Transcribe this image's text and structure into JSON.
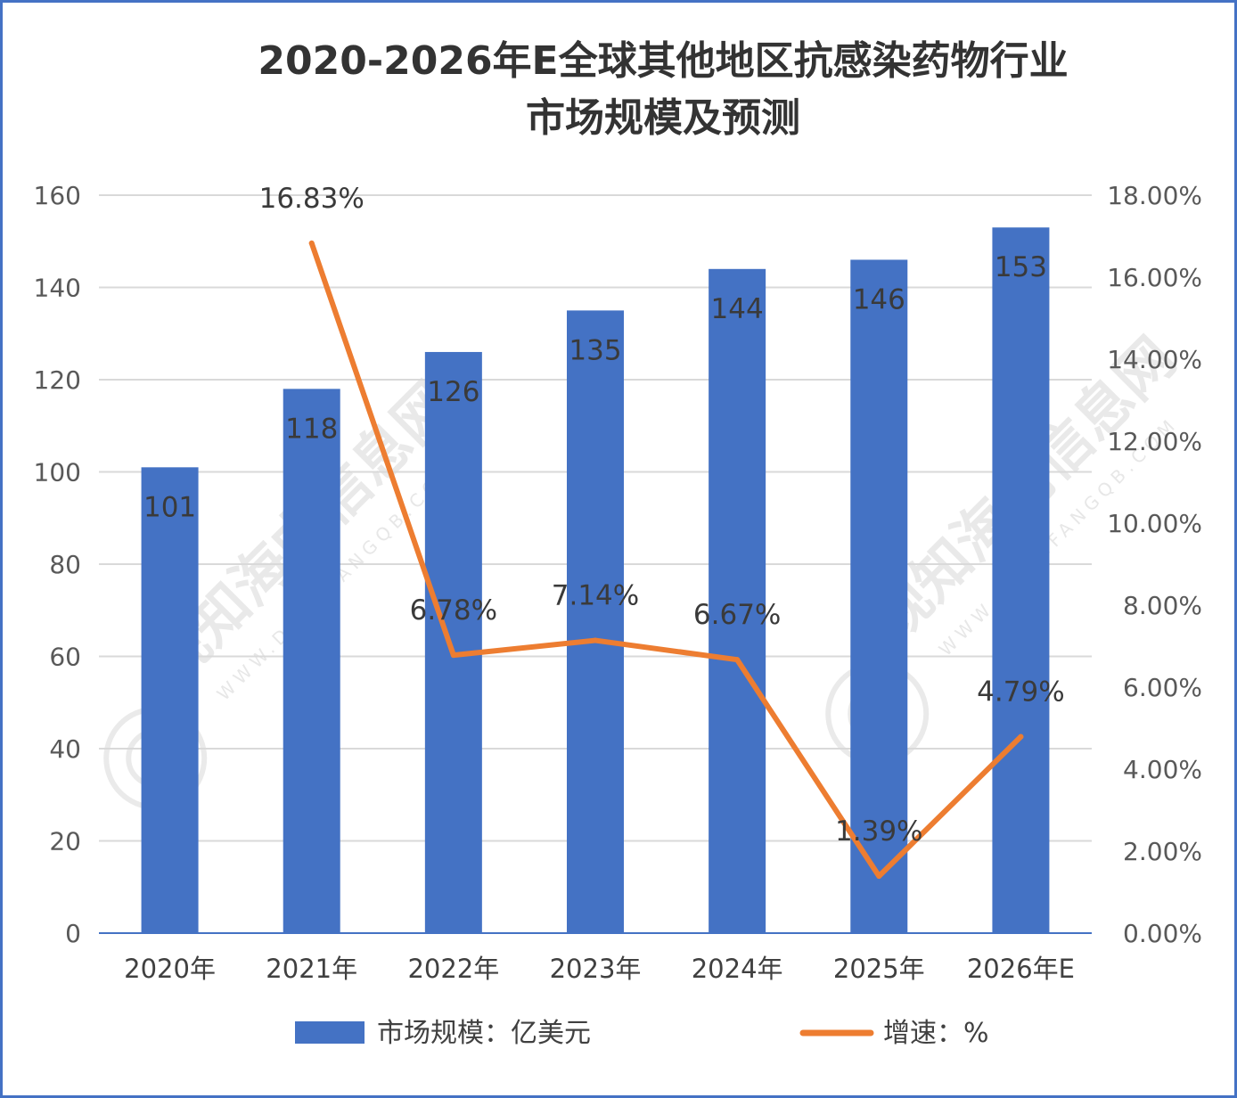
{
  "chart_data": {
    "type": "bar",
    "title_lines": [
      "2020-2026年E全球其他地区抗感染药物行业",
      "市场规模及预测"
    ],
    "categories": [
      "2020年",
      "2021年",
      "2022年",
      "2023年",
      "2024年",
      "2025年",
      "2026年E"
    ],
    "series": [
      {
        "name": "市场规模：亿美元",
        "type": "bar",
        "axis": "left",
        "color": "#4472c4",
        "values": [
          101,
          118,
          126,
          135,
          144,
          146,
          153
        ],
        "labels": [
          "101",
          "118",
          "126",
          "135",
          "144",
          "146",
          "153"
        ]
      },
      {
        "name": "增速：%",
        "type": "line",
        "axis": "right",
        "color": "#ed7d31",
        "values": [
          null,
          16.83,
          6.78,
          7.14,
          6.67,
          1.39,
          4.79
        ],
        "labels": [
          null,
          "16.83%",
          "6.78%",
          "7.14%",
          "6.67%",
          "1.39%",
          "4.79%"
        ]
      }
    ],
    "y_left": {
      "min": 0,
      "max": 160,
      "ticks": [
        "0",
        "20",
        "40",
        "60",
        "80",
        "100",
        "120",
        "140",
        "160"
      ]
    },
    "y_right": {
      "min": 0,
      "max": 18,
      "ticks": [
        "0.00%",
        "2.00%",
        "4.00%",
        "6.00%",
        "8.00%",
        "10.00%",
        "12.00%",
        "14.00%",
        "16.00%",
        "18.00%"
      ]
    },
    "grid": true,
    "legend_position": "bottom"
  },
  "watermark": {
    "text": "观知海内信息网",
    "sub": "WWW.DONGFANGQB.COM"
  },
  "colors": {
    "border": "#4472c4",
    "grid": "#d9d9d9",
    "axis": "#4472c4"
  }
}
